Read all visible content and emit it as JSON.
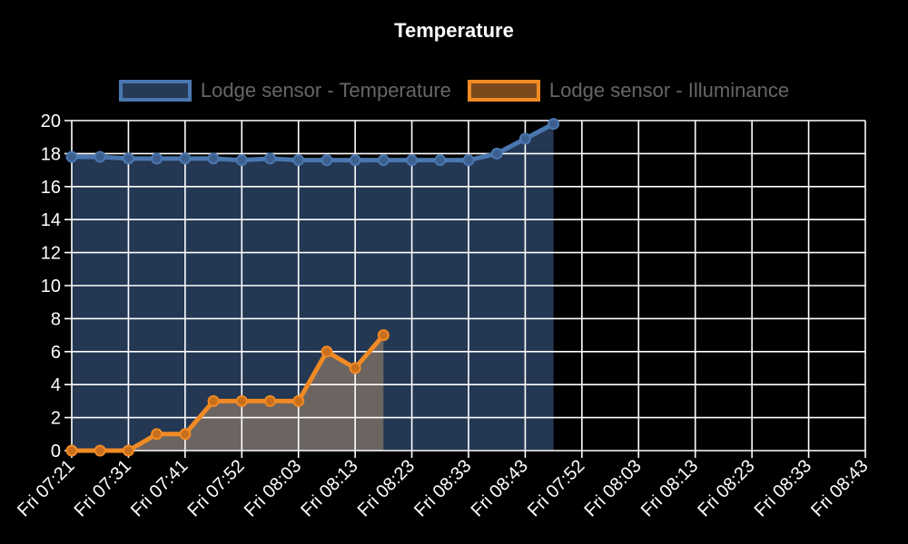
{
  "chart_data": {
    "type": "line",
    "title": "Temperature",
    "legend_position": "top",
    "grid": true,
    "ylim": [
      0,
      20
    ],
    "y_ticks": [
      "0",
      "2",
      "4",
      "6",
      "8",
      "10",
      "12",
      "14",
      "16",
      "18",
      "20"
    ],
    "x_tick_labels": [
      "Fri 07:21",
      "Fri 07:31",
      "Fri 07:41",
      "Fri 07:52",
      "Fri 08:03",
      "Fri 08:13",
      "Fri 08:23",
      "Fri 08:33",
      "Fri 08:43",
      "Fri 07:52",
      "Fri 08:03",
      "Fri 08:13",
      "Fri 08:23",
      "Fri 08:33",
      "Fri 08:43"
    ],
    "series": [
      {
        "name": "Lodge sensor - Temperature",
        "color": "#4a77b0",
        "fill": "#263a57",
        "values": [
          17.8,
          17.8,
          17.7,
          17.7,
          17.7,
          17.7,
          17.6,
          17.7,
          17.6,
          17.6,
          17.6,
          17.6,
          17.6,
          17.6,
          17.6,
          18.0,
          18.9,
          19.8
        ]
      },
      {
        "name": "Lodge sensor - Illuminance",
        "color": "#f08a24",
        "fill": "#6b6460",
        "values": [
          0,
          0,
          0,
          1,
          1,
          3,
          3,
          3,
          3,
          6,
          5,
          7
        ]
      }
    ]
  }
}
